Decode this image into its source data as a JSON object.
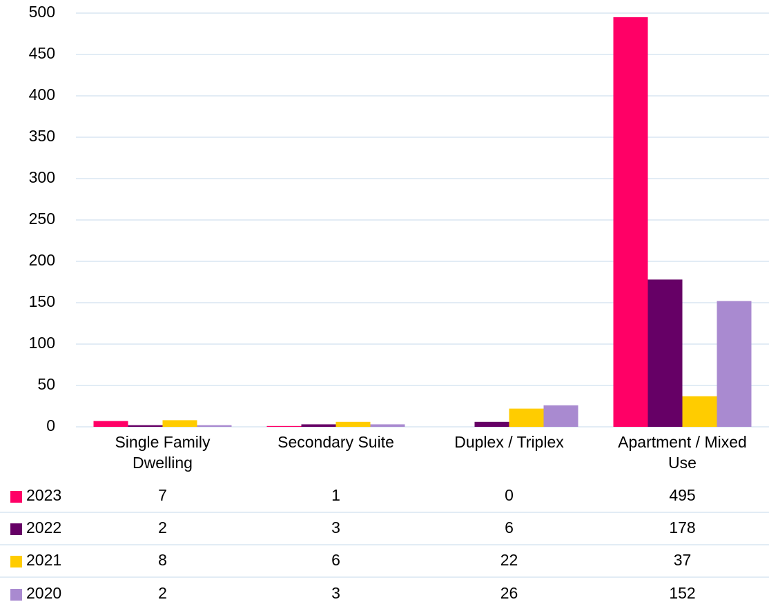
{
  "chart_data": {
    "type": "bar",
    "categories": [
      "Single Family Dwelling",
      "Secondary Suite",
      "Duplex / Triplex",
      "Apartment / Mixed Use"
    ],
    "series": [
      {
        "name": "2023",
        "color": "#ff0066",
        "values": [
          7,
          1,
          0,
          495
        ]
      },
      {
        "name": "2022",
        "color": "#660066",
        "values": [
          2,
          3,
          6,
          178
        ]
      },
      {
        "name": "2021",
        "color": "#ffcc00",
        "values": [
          8,
          6,
          22,
          37
        ]
      },
      {
        "name": "2020",
        "color": "#a98ad0",
        "values": [
          2,
          3,
          26,
          152
        ]
      }
    ],
    "ylim": [
      0,
      500
    ],
    "yticks": [
      0,
      50,
      100,
      150,
      200,
      250,
      300,
      350,
      400,
      450,
      500
    ],
    "grid": true
  }
}
